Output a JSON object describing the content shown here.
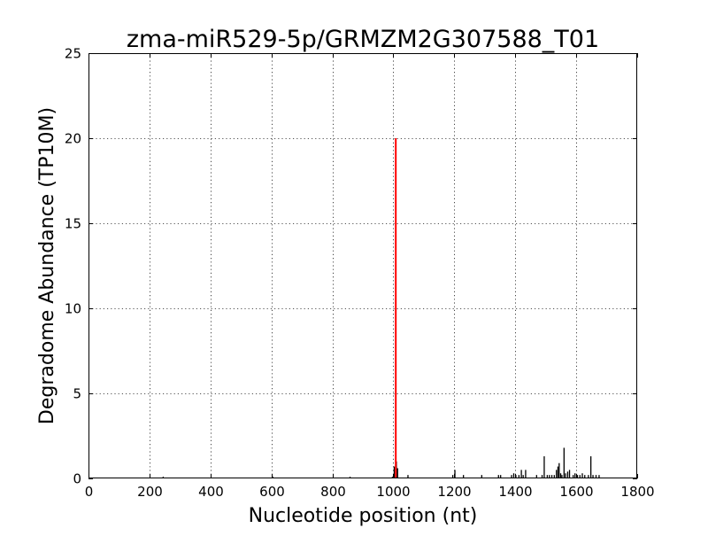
{
  "chart_data": {
    "type": "bar",
    "title": "zma-miR529-5p/GRMZM2G307588_T01",
    "xlabel": "Nucleotide position (nt)",
    "ylabel": "Degradome Abundance (TP10M)",
    "xlim": [
      0,
      1800
    ],
    "ylim": [
      0,
      25
    ],
    "xticks": [
      0,
      200,
      400,
      600,
      800,
      1000,
      1200,
      1400,
      1600,
      1800
    ],
    "yticks": [
      0,
      5,
      10,
      15,
      20,
      25
    ],
    "grid": true,
    "highlight_color": "#ff0000",
    "bar_color": "#000000",
    "highlight": {
      "x": 1008,
      "value": 20
    },
    "series": [
      {
        "x": [
          245,
          605,
          858,
          997,
          1003,
          1010,
          1014,
          1048,
          1195,
          1202,
          1230,
          1290,
          1345,
          1352,
          1388,
          1395,
          1402,
          1412,
          1420,
          1426,
          1434,
          1470,
          1488,
          1495,
          1505,
          1512,
          1520,
          1528,
          1535,
          1540,
          1544,
          1549,
          1553,
          1560,
          1565,
          1572,
          1578,
          1590,
          1596,
          1604,
          1612,
          1620,
          1628,
          1640,
          1648,
          1655,
          1665,
          1675
        ],
        "values": [
          0.1,
          0.1,
          0.1,
          0.1,
          0.7,
          1.0,
          0.6,
          0.2,
          0.2,
          0.5,
          0.2,
          0.2,
          0.2,
          0.2,
          0.2,
          0.3,
          0.2,
          0.2,
          0.5,
          0.2,
          0.5,
          0.2,
          0.2,
          1.3,
          0.2,
          0.2,
          0.2,
          0.2,
          0.5,
          0.7,
          0.9,
          0.3,
          0.2,
          1.8,
          0.3,
          0.4,
          0.5,
          0.2,
          0.3,
          0.2,
          0.2,
          0.3,
          0.2,
          0.2,
          1.3,
          0.2,
          0.2,
          0.2
        ]
      }
    ]
  }
}
